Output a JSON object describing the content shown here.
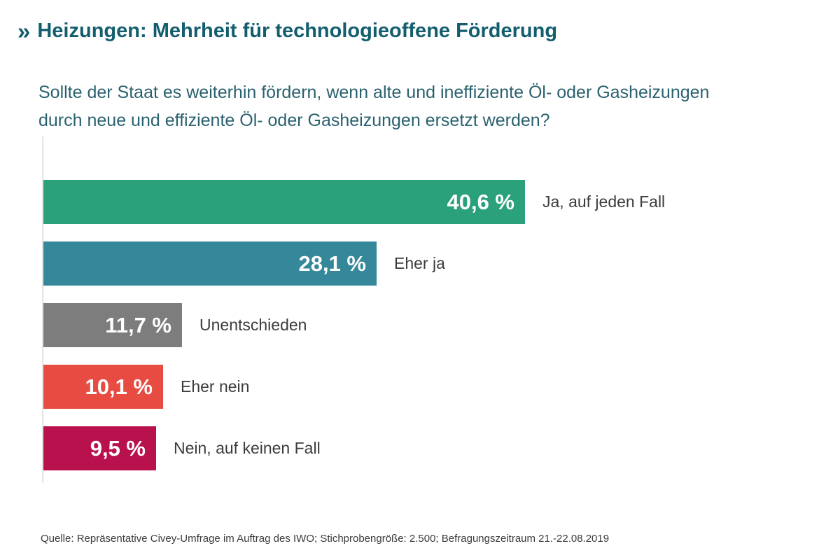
{
  "header": {
    "marker": "»",
    "title": "Heizungen: Mehrheit für technologieoffene Förderung"
  },
  "question_lines": [
    "Sollte der Staat es weiterhin fördern, wenn alte und ineffiziente Öl- oder Gasheizungen",
    "durch neue und effiziente Öl- oder Gasheizungen ersetzt werden?"
  ],
  "chart_data": {
    "type": "bar",
    "orientation": "horizontal",
    "title": "Heizungen: Mehrheit für technologieoffene Förderung",
    "subtitle": "Sollte der Staat es weiterhin fördern, wenn alte und ineffiziente Öl- oder Gasheizungen durch neue und effiziente Öl- oder Gasheizungen ersetzt werden?",
    "categories": [
      "Ja, auf jeden Fall",
      "Eher ja",
      "Unentschieden",
      "Eher nein",
      "Nein, auf keinen Fall"
    ],
    "values": [
      40.6,
      28.1,
      11.7,
      10.1,
      9.5
    ],
    "value_labels": [
      "40,6 %",
      "28,1 %",
      "11,7 %",
      "10,1 %",
      "9,5 %"
    ],
    "bar_colors": [
      "#2aa17b",
      "#35879a",
      "#7d7d7d",
      "#e84b41",
      "#b8114d"
    ],
    "value_label_color": "#ffffff",
    "category_label_color": "#3c3c3c",
    "axis_color": "#e4e4e4",
    "xlabel": "",
    "ylabel": "",
    "xlim": [
      0,
      45
    ],
    "grid": false,
    "legend": false
  },
  "source": "Quelle: Repräsentative Civey-Umfrage im Auftrag des IWO; Stichprobengröße: 2.500; Befragungszeitraum 21.-22.08.2019",
  "colors": {
    "title": "#135e6e",
    "question": "#2a616e",
    "background": "#ffffff"
  }
}
